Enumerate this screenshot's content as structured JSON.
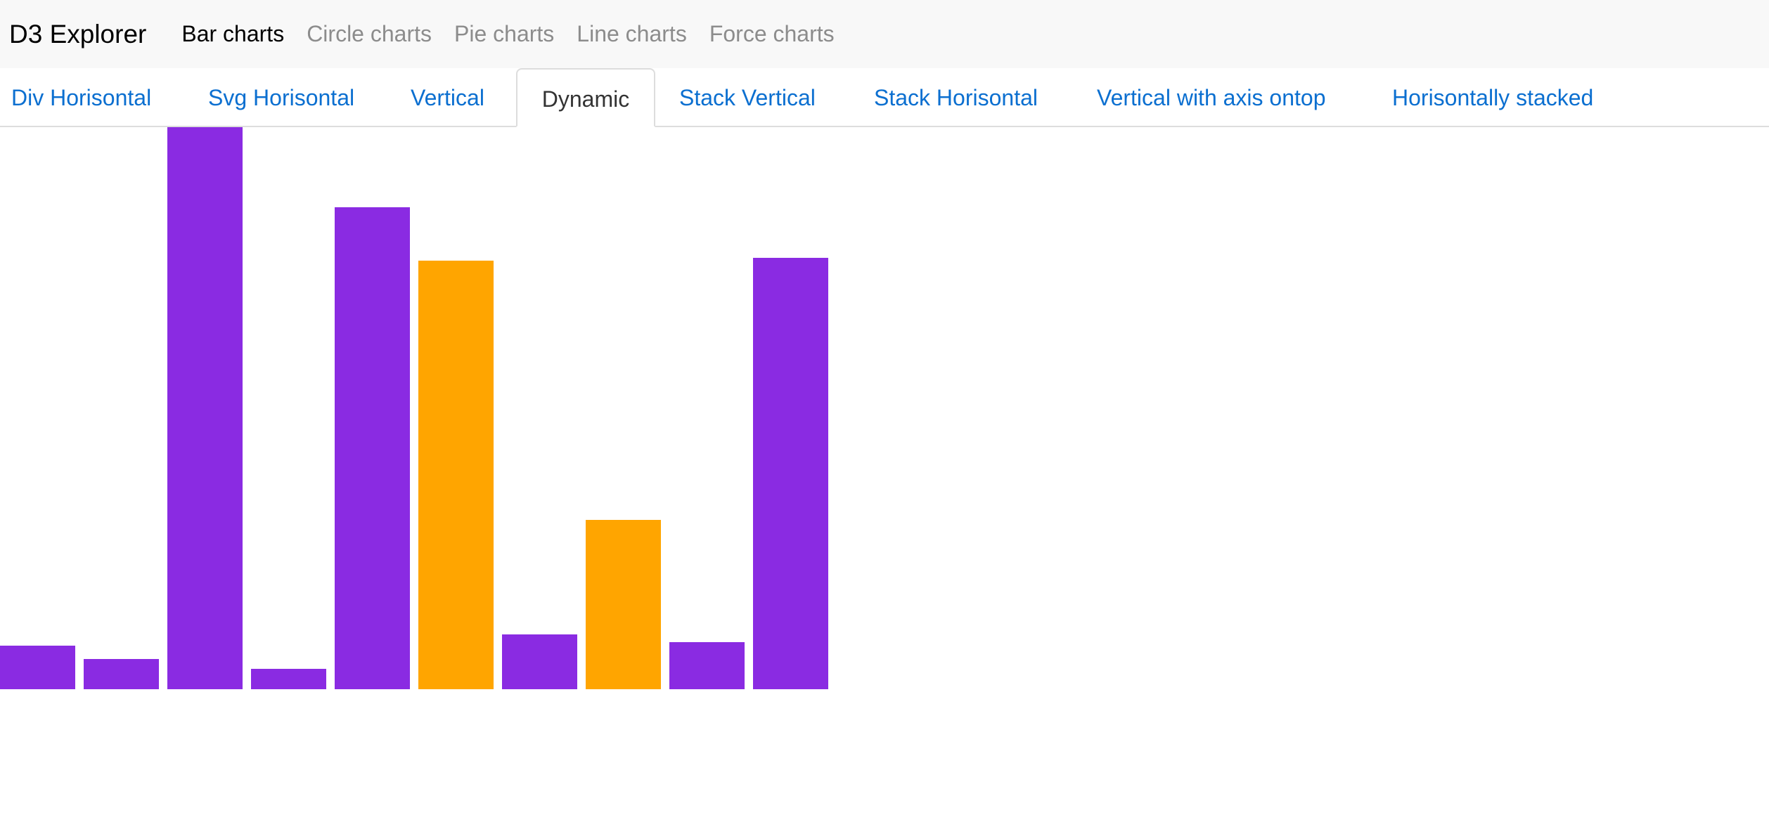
{
  "navbar": {
    "brand": "D3 Explorer",
    "items": [
      {
        "label": "Bar charts",
        "active": true
      },
      {
        "label": "Circle charts",
        "active": false
      },
      {
        "label": "Pie charts",
        "active": false
      },
      {
        "label": "Line charts",
        "active": false
      },
      {
        "label": "Force charts",
        "active": false
      }
    ]
  },
  "tabs": [
    {
      "label": "Div Horisontal",
      "active": false
    },
    {
      "label": "Svg Horisontal",
      "active": false
    },
    {
      "label": "Vertical",
      "active": false
    },
    {
      "label": "Dynamic",
      "active": true
    },
    {
      "label": "Stack Vertical",
      "active": false
    },
    {
      "label": "Stack Horisontal",
      "active": false
    },
    {
      "label": "Vertical with axis ontop",
      "active": false
    },
    {
      "label": "Horisontally stacked",
      "active": false
    }
  ],
  "colors": {
    "bar_primary": "#8a2be2",
    "bar_highlight": "#ffa500",
    "link": "#0b6fd0"
  },
  "chart_data": {
    "type": "bar",
    "values": [
      62,
      43,
      800,
      29,
      686,
      610,
      78,
      241,
      67,
      614
    ],
    "colors": [
      "#8a2be2",
      "#8a2be2",
      "#8a2be2",
      "#8a2be2",
      "#8a2be2",
      "#ffa500",
      "#8a2be2",
      "#ffa500",
      "#8a2be2",
      "#8a2be2"
    ],
    "ylim": [
      0,
      800
    ]
  }
}
